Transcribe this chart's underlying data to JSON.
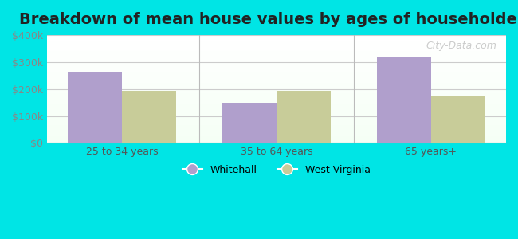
{
  "title": "Breakdown of mean house values by ages of householders",
  "categories": [
    "25 to 34 years",
    "35 to 64 years",
    "65 years+"
  ],
  "whitehall_values": [
    262000,
    148000,
    318000
  ],
  "west_virginia_values": [
    193000,
    193000,
    173000
  ],
  "whitehall_color": "#b09fcc",
  "west_virginia_color": "#c8cc99",
  "ylim": [
    0,
    400000
  ],
  "yticks": [
    0,
    100000,
    200000,
    300000,
    400000
  ],
  "ytick_labels": [
    "$0",
    "$100k",
    "$200k",
    "$300k",
    "$400k"
  ],
  "background_color": "#00e5e5",
  "bar_width": 0.35,
  "legend_labels": [
    "Whitehall",
    "West Virginia"
  ],
  "title_fontsize": 14,
  "watermark": "City-Data.com"
}
